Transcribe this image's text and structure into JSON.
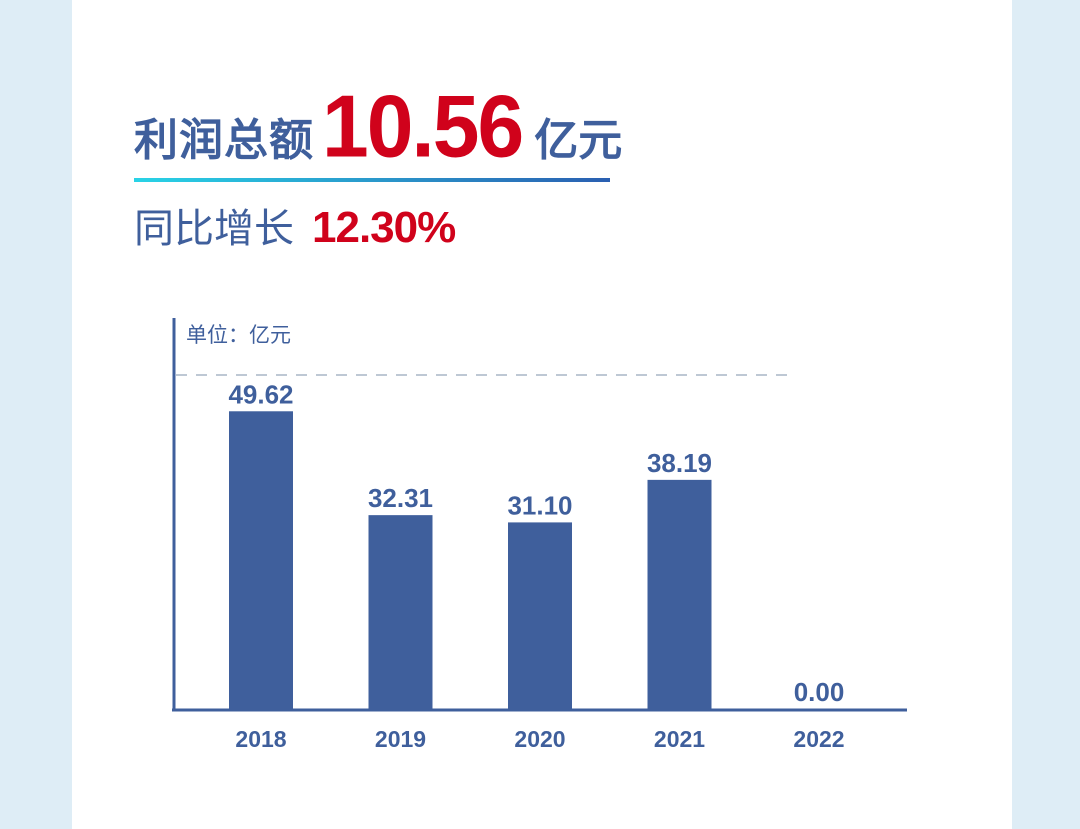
{
  "headline": {
    "label": "利润总额",
    "value": "10.56",
    "unit": "亿元"
  },
  "growth": {
    "label": "同比增长",
    "value": "12.30%"
  },
  "colors": {
    "bar": "#3f5f9c",
    "highlight": "#d0021b",
    "text": "#3f5f9c",
    "highlight_tick": "#1b4e9a"
  },
  "chart_data": {
    "type": "bar",
    "unit_label": "单位：亿元",
    "categories": [
      "2018",
      "2019",
      "2020",
      "2021",
      "2022"
    ],
    "values": [
      49.62,
      32.31,
      31.1,
      38.19,
      0.0
    ],
    "value_labels": [
      "49.62",
      "32.31",
      "31.10",
      "38.19",
      "0.00"
    ],
    "highlight_index": 4,
    "ylim": [
      0,
      60
    ],
    "grid": false,
    "dashed_reference_line": true
  }
}
